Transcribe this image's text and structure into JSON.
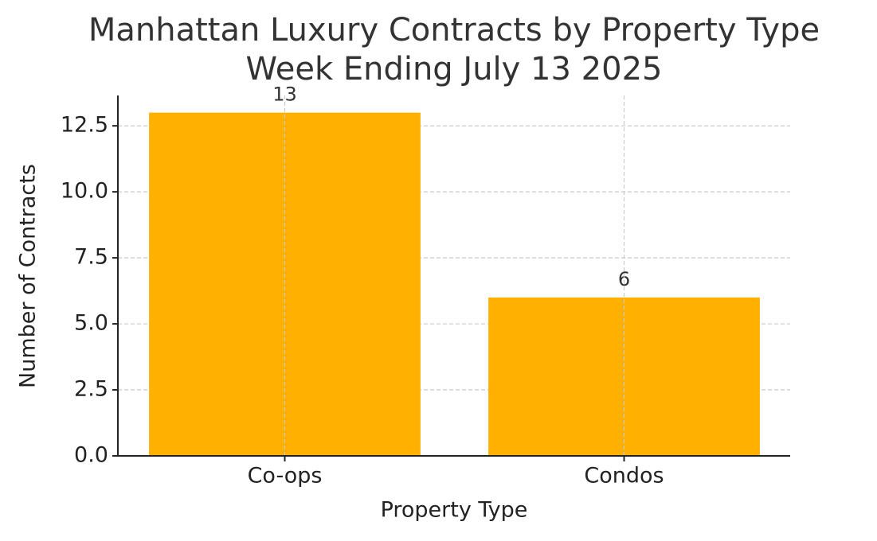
{
  "chart_data": {
    "type": "bar",
    "title": [
      "Manhattan Luxury Contracts by Property Type",
      "Week Ending July 13 2025"
    ],
    "x_label": "Property Type",
    "y_label": "Number of Contracts",
    "categories": [
      "Co-ops",
      "Condos"
    ],
    "values": [
      13,
      6
    ],
    "color": "#ffb000",
    "ylim": [
      0,
      13.65
    ],
    "yticks": [
      {
        "value": 0,
        "label": "0.0"
      },
      2.5,
      {
        "value": 5,
        "label": "5.0"
      },
      7.5,
      {
        "value": 10,
        "label": "10.0"
      },
      12.5
    ],
    "grid": true
  }
}
